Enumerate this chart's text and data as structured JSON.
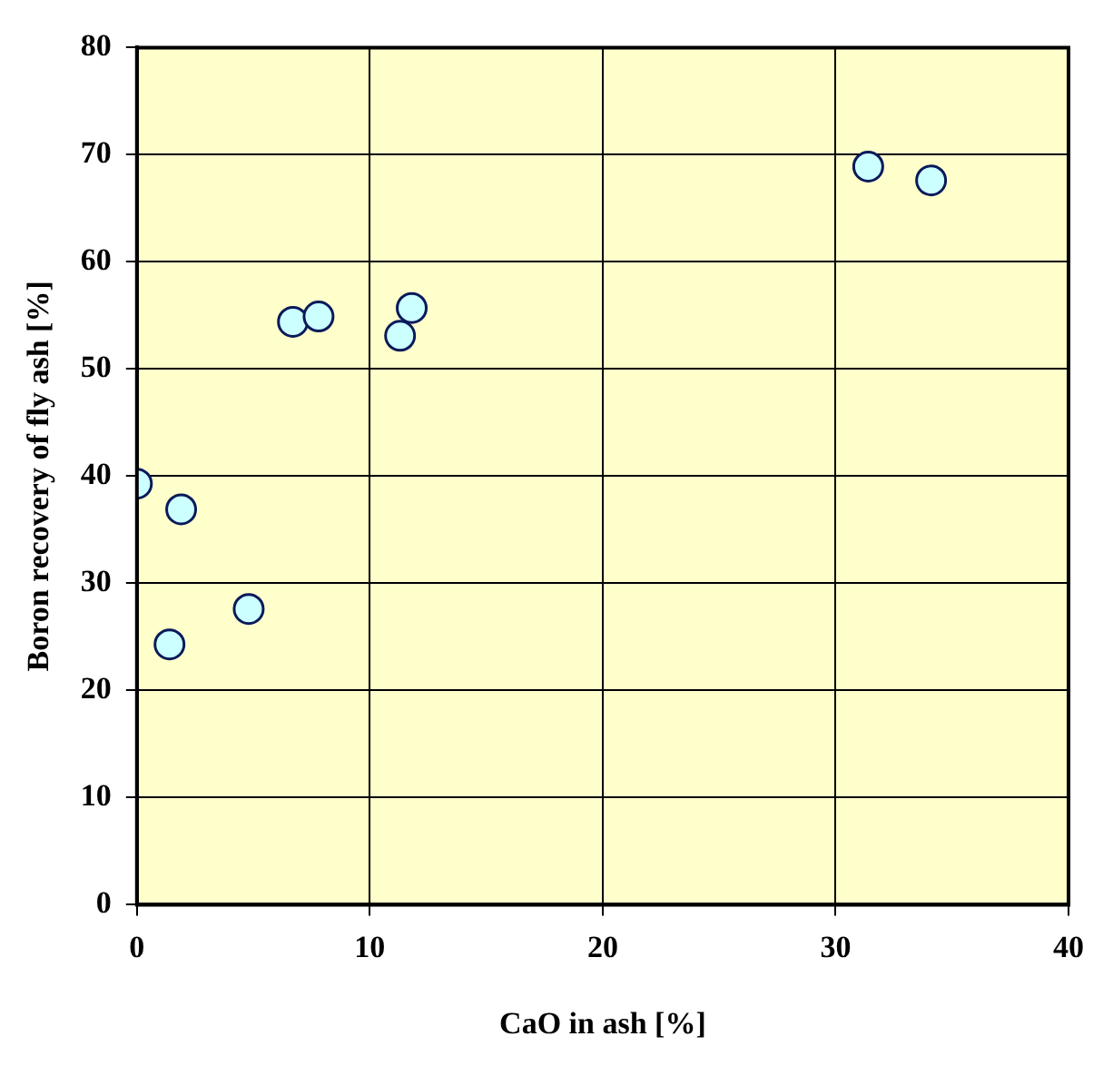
{
  "chart_data": {
    "type": "scatter",
    "xlabel": "CaO in ash [%]",
    "ylabel": "Boron recovery of fly ash [%]",
    "x": [
      0,
      1.4,
      1.9,
      4.8,
      6.7,
      7.8,
      11.3,
      11.8,
      31.4,
      34.1
    ],
    "series": [
      {
        "color": "#ccffff",
        "values": [
          39.3,
          24.3,
          36.9,
          27.6,
          54.4,
          54.9,
          53.1,
          55.7,
          68.9,
          67.6
        ]
      }
    ],
    "xlim": [
      0,
      40
    ],
    "xticks": [
      0,
      10,
      20,
      30,
      40
    ],
    "ylim": [
      0,
      80
    ],
    "yticks": [
      0,
      10,
      20,
      30,
      40,
      50,
      60,
      70,
      80
    ],
    "grid": true,
    "legend": false,
    "marker": "circle"
  }
}
